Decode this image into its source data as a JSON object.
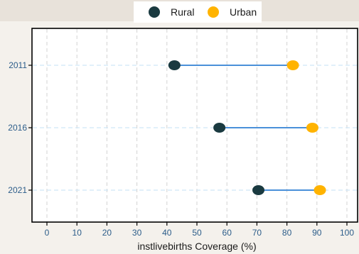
{
  "chart_data": {
    "type": "dumbbell",
    "categories": [
      "2011",
      "2016",
      "2021"
    ],
    "series": [
      {
        "name": "Rural",
        "color": "#1a3a40",
        "values": [
          42.5,
          57.5,
          70.5
        ]
      },
      {
        "name": "Urban",
        "color": "#ffb300",
        "values": [
          82,
          88.5,
          91
        ]
      }
    ],
    "connector_color": "#4a90d9",
    "xlabel": "instlivebirths Coverage (%)",
    "ylabel": "",
    "title": "",
    "xlim": [
      0,
      100
    ],
    "xticks": [
      "0",
      "10",
      "20",
      "30",
      "40",
      "50",
      "60",
      "70",
      "80",
      "90",
      "100"
    ],
    "grid": true,
    "legend_position": "top"
  }
}
